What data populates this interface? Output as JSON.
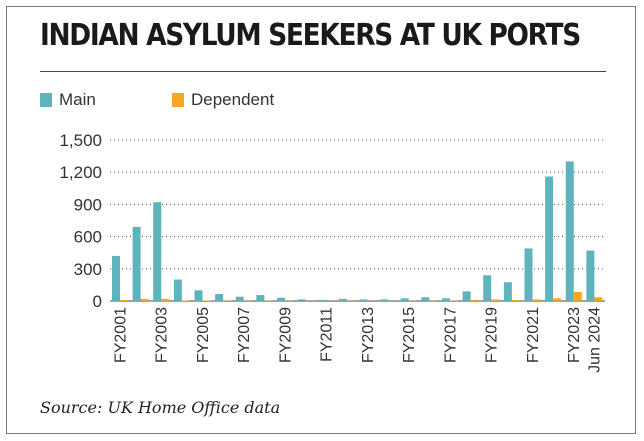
{
  "chart_data": {
    "type": "bar",
    "title": "INDIAN ASYLUM SEEKERS AT UK PORTS",
    "source": "Source: UK Home Office data",
    "xlabel": "",
    "ylabel": "",
    "ylim": [
      0,
      1500
    ],
    "yticks": [
      0,
      300,
      600,
      900,
      1200,
      1500
    ],
    "ytick_labels": [
      "0",
      "300",
      "600",
      "900",
      "1,200",
      "1,500"
    ],
    "legend_position": "top-left",
    "categories": [
      "FY2001",
      "FY2002",
      "FY2003",
      "FY2004",
      "FY2005",
      "FY2006",
      "FY2007",
      "FY2008",
      "FY2009",
      "FY2010",
      "FY2011",
      "FY2012",
      "FY2013",
      "FY2014",
      "FY2015",
      "FY2016",
      "FY2017",
      "FY2018",
      "FY2019",
      "FY2020",
      "FY2021",
      "FY2022",
      "FY2023",
      "Jun 2024"
    ],
    "xtick_labels": [
      "FY2001",
      "",
      "FY2003",
      "",
      "FY2005",
      "",
      "FY2007",
      "",
      "FY2009",
      "",
      "FY2011",
      "",
      "FY2013",
      "",
      "FY2015",
      "",
      "FY2017",
      "",
      "FY2019",
      "",
      "FY2021",
      "",
      "FY2023",
      "Jun 2024"
    ],
    "series": [
      {
        "name": "Main",
        "color": "#5fb3bd",
        "values": [
          420,
          690,
          920,
          200,
          100,
          65,
          40,
          55,
          30,
          15,
          10,
          20,
          15,
          15,
          25,
          35,
          25,
          90,
          240,
          175,
          490,
          1160,
          1300,
          470
        ]
      },
      {
        "name": "Dependent",
        "color": "#f5a623",
        "values": [
          10,
          20,
          20,
          5,
          5,
          3,
          2,
          3,
          2,
          1,
          1,
          2,
          1,
          1,
          2,
          2,
          3,
          10,
          15,
          10,
          15,
          25,
          85,
          35
        ]
      }
    ]
  }
}
